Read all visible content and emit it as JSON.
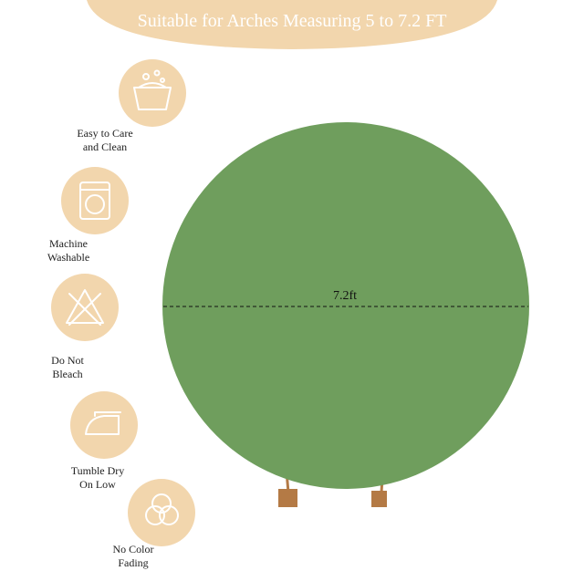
{
  "header": {
    "title": "Suitable for Arches Measuring 5 to 7.2 FT"
  },
  "features": [
    {
      "lines": [
        "Easy to Care",
        "and Clean"
      ]
    },
    {
      "lines": [
        "Machine",
        "Washable"
      ]
    },
    {
      "lines": [
        "Do Not",
        "Bleach"
      ]
    },
    {
      "lines": [
        "Tumble Dry",
        "On Low"
      ]
    },
    {
      "lines": [
        "No Color",
        "Fading"
      ]
    }
  ],
  "product": {
    "dimension_label": "7.2ft"
  }
}
